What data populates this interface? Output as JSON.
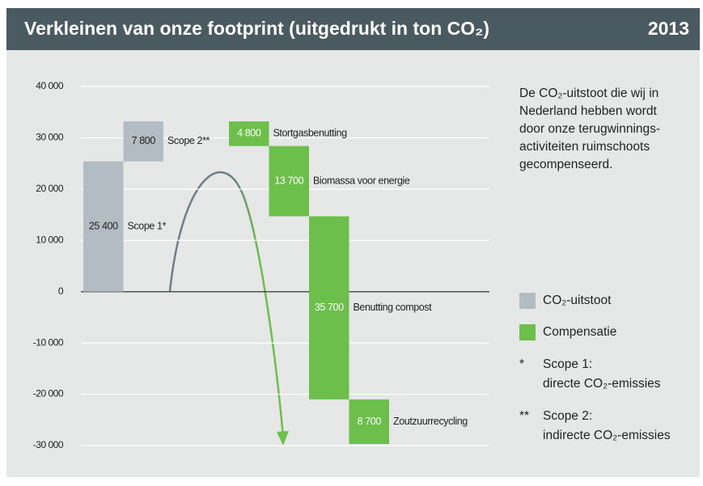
{
  "chart_data": {
    "type": "waterfall",
    "title": "Verkleinen van onze footprint (uitgedrukt in ton CO₂)",
    "year": "2013",
    "categories": [
      "Scope 1*",
      "Scope 2**",
      "Stortgasbenutting",
      "Biomassa voor energie",
      "Benutting compost",
      "Zoutzuurrecycling"
    ],
    "series": [
      {
        "name": "CO₂-uitstoot",
        "color": "#b3bcc2",
        "values": [
          25400,
          7800,
          null,
          null,
          null,
          null
        ],
        "value_labels": [
          "25 400",
          "7 800",
          null,
          null,
          null,
          null
        ]
      },
      {
        "name": "Compensatie",
        "color": "#6cbf4a",
        "values": [
          null,
          null,
          4800,
          13700,
          35700,
          8700
        ],
        "value_labels": [
          null,
          null,
          "4 800",
          "13 700",
          "35 700",
          "8 700"
        ]
      }
    ],
    "ylim": [
      -30000,
      40000
    ],
    "yticks": [
      {
        "value": 40000,
        "label": "40 000"
      },
      {
        "value": 30000,
        "label": "30 000"
      },
      {
        "value": 20000,
        "label": "20 000"
      },
      {
        "value": 10000,
        "label": "10 000"
      },
      0,
      {
        "value": -10000,
        "label": "-10 000"
      },
      {
        "value": -20000,
        "label": "-20 000"
      },
      {
        "value": -30000,
        "label": "-30 000"
      }
    ],
    "grid": true,
    "note": [
      "De CO₂-uitstoot die wij in",
      "Nederland hebben wordt",
      "door onze terugwinnings-",
      "activiteiten ruimschoots",
      "gecompenseerd."
    ],
    "footnotes": [
      {
        "mark": "*",
        "lines": [
          "Scope 1:",
          "directe CO₂-emissies"
        ]
      },
      {
        "mark": "**",
        "lines": [
          "Scope 2:",
          "indirecte CO₂-emissies"
        ]
      }
    ]
  }
}
